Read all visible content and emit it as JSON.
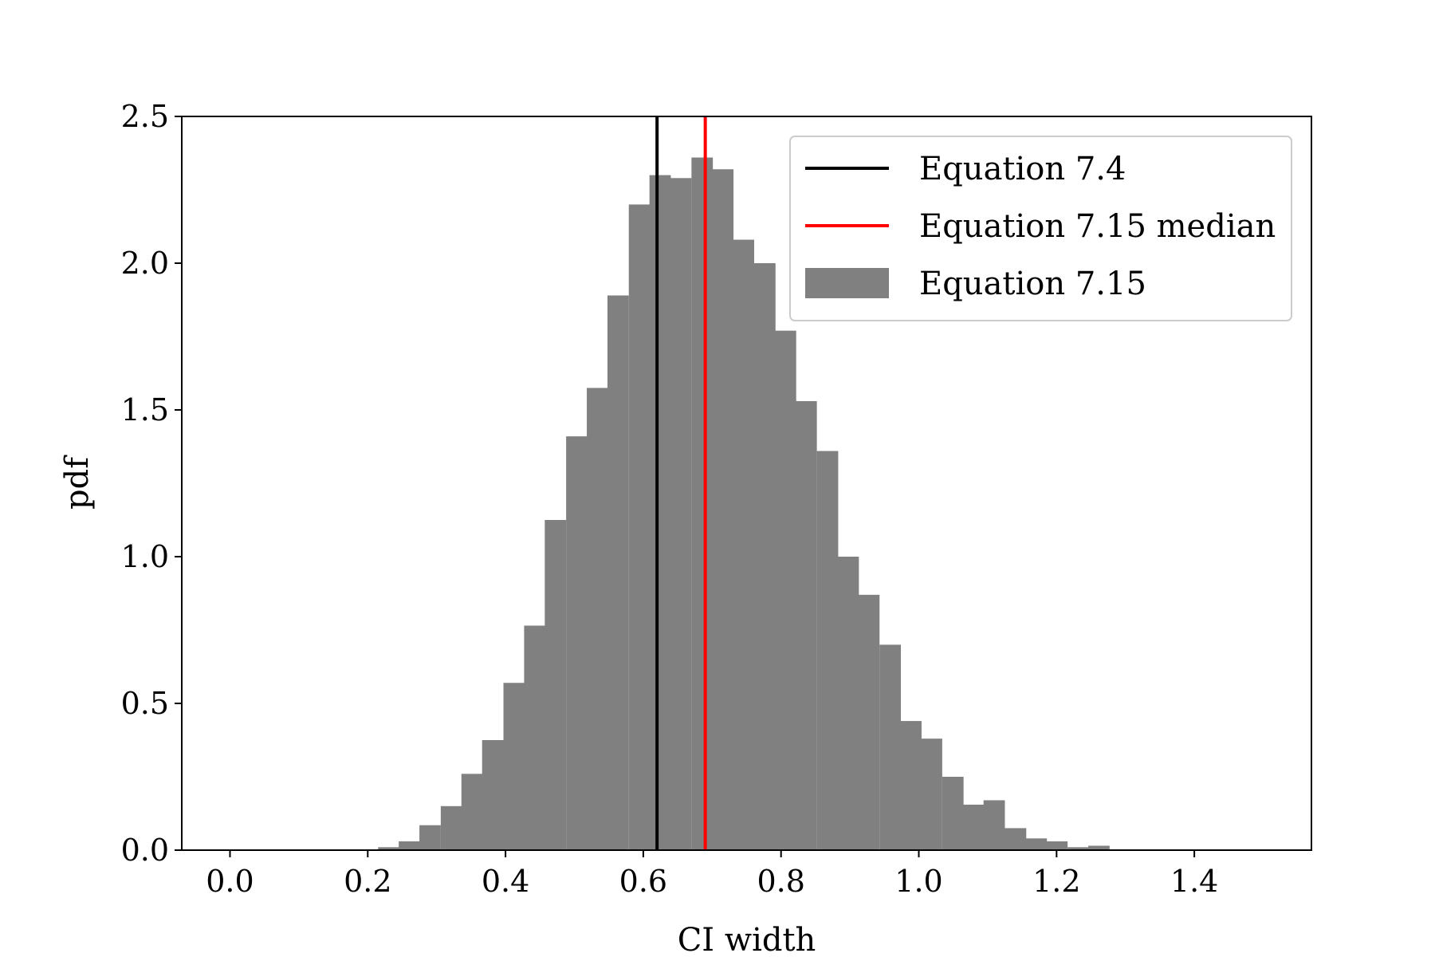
{
  "chart_data": {
    "type": "bar",
    "title": "",
    "xlabel": "CI width",
    "ylabel": "pdf",
    "xlim": [
      -0.07,
      1.57
    ],
    "ylim": [
      0,
      2.5
    ],
    "xticks": [
      0.0,
      0.2,
      0.4,
      0.6,
      0.8,
      1.0,
      1.2,
      1.4
    ],
    "xtick_labels": [
      "0.0",
      "0.2",
      "0.4",
      "0.6",
      "0.8",
      "1.0",
      "1.2",
      "1.4"
    ],
    "yticks": [
      0.0,
      0.5,
      1.0,
      1.5,
      2.0,
      2.5
    ],
    "ytick_labels": [
      "0.0",
      "0.5",
      "1.0",
      "1.5",
      "2.0",
      "2.5"
    ],
    "grid": false,
    "legend_position": "top-right",
    "histogram": {
      "name": "Equation 7.15",
      "color": "#808080",
      "bin_width": 0.0303,
      "bin_starts": [
        0.215,
        0.245,
        0.275,
        0.306,
        0.336,
        0.366,
        0.397,
        0.427,
        0.457,
        0.488,
        0.518,
        0.548,
        0.579,
        0.609,
        0.639,
        0.67,
        0.7,
        0.73,
        0.761,
        0.791,
        0.821,
        0.852,
        0.882,
        0.912,
        0.943,
        0.973,
        1.003,
        1.034,
        1.064,
        1.094,
        1.125,
        1.155,
        1.185,
        1.216,
        1.246
      ],
      "values": [
        0.01,
        0.03,
        0.085,
        0.15,
        0.26,
        0.375,
        0.57,
        0.765,
        1.125,
        1.41,
        1.575,
        1.89,
        2.2,
        2.3,
        2.29,
        2.36,
        2.32,
        2.08,
        2.0,
        1.77,
        1.53,
        1.36,
        1.0,
        0.87,
        0.7,
        0.44,
        0.38,
        0.25,
        0.155,
        0.17,
        0.075,
        0.04,
        0.03,
        0.01,
        0.015
      ]
    },
    "vlines": [
      {
        "name": "Equation 7.4",
        "x": 0.62,
        "color": "#000000"
      },
      {
        "name": "Equation 7.15 median",
        "x": 0.69,
        "color": "#ff0000"
      }
    ],
    "legend": [
      "Equation 7.4",
      "Equation 7.15 median",
      "Equation 7.15"
    ]
  }
}
